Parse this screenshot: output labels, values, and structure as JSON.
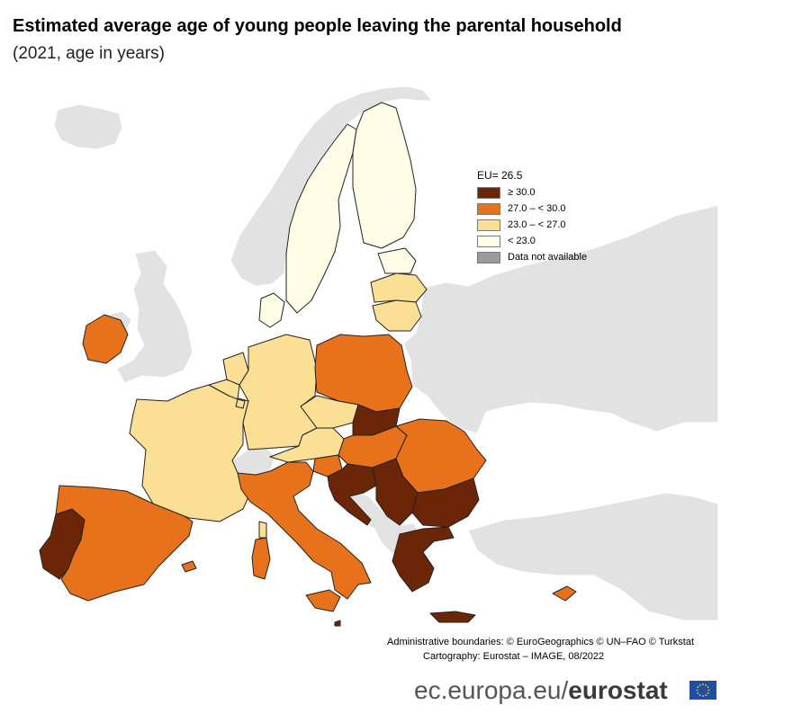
{
  "title": "Estimated average age of young people leaving the parental household",
  "subtitle": "(2021, age in years)",
  "legend": {
    "header": "EU= 26.5",
    "items": [
      {
        "label": "≥ 30.0",
        "color": "#6b2608"
      },
      {
        "label": "27.0 – < 30.0",
        "color": "#e8711c"
      },
      {
        "label": "23.0 – < 27.0",
        "color": "#fbdf94"
      },
      {
        "label": "< 23.0",
        "color": "#fffde6"
      },
      {
        "label": "Data not available",
        "color": "#9a9a9a"
      }
    ]
  },
  "colors": {
    "non_eu_land": "#e2e2e2",
    "sea": "#ffffff",
    "border": "#222222"
  },
  "regions": [
    {
      "name": "Ireland",
      "class": "27.0 – < 30.0"
    },
    {
      "name": "Portugal",
      "class": "≥ 30.0"
    },
    {
      "name": "Spain",
      "class": "27.0 – < 30.0"
    },
    {
      "name": "France",
      "class": "23.0 – < 27.0"
    },
    {
      "name": "Belgium",
      "class": "23.0 – < 27.0"
    },
    {
      "name": "Netherlands",
      "class": "23.0 – < 27.0"
    },
    {
      "name": "Luxembourg",
      "class": "23.0 – < 27.0"
    },
    {
      "name": "Germany",
      "class": "23.0 – < 27.0"
    },
    {
      "name": "Denmark",
      "class": "< 23.0"
    },
    {
      "name": "Sweden",
      "class": "< 23.0"
    },
    {
      "name": "Finland",
      "class": "< 23.0"
    },
    {
      "name": "Estonia",
      "class": "< 23.0"
    },
    {
      "name": "Latvia",
      "class": "23.0 – < 27.0"
    },
    {
      "name": "Lithuania",
      "class": "23.0 – < 27.0"
    },
    {
      "name": "Poland",
      "class": "27.0 – < 30.0"
    },
    {
      "name": "Czechia",
      "class": "23.0 – < 27.0"
    },
    {
      "name": "Austria",
      "class": "23.0 – < 27.0"
    },
    {
      "name": "Slovakia",
      "class": "≥ 30.0"
    },
    {
      "name": "Hungary",
      "class": "27.0 – < 30.0"
    },
    {
      "name": "Romania",
      "class": "27.0 – < 30.0"
    },
    {
      "name": "Slovenia",
      "class": "27.0 – < 30.0"
    },
    {
      "name": "Croatia",
      "class": "≥ 30.0"
    },
    {
      "name": "Serbia",
      "class": "≥ 30.0"
    },
    {
      "name": "Bulgaria",
      "class": "≥ 30.0"
    },
    {
      "name": "Italy",
      "class": "27.0 – < 30.0"
    },
    {
      "name": "Greece",
      "class": "≥ 30.0"
    },
    {
      "name": "Cyprus",
      "class": "27.0 – < 30.0"
    },
    {
      "name": "Malta",
      "class": "≥ 30.0"
    }
  ],
  "credits": {
    "line1": "Administrative boundaries: © EuroGeographics © UN–FAO © Turkstat",
    "line2": "Cartography: Eurostat – IMAGE, 08/2022"
  },
  "brand": {
    "domain": "ec.europa.eu/",
    "name": "eurostat"
  }
}
